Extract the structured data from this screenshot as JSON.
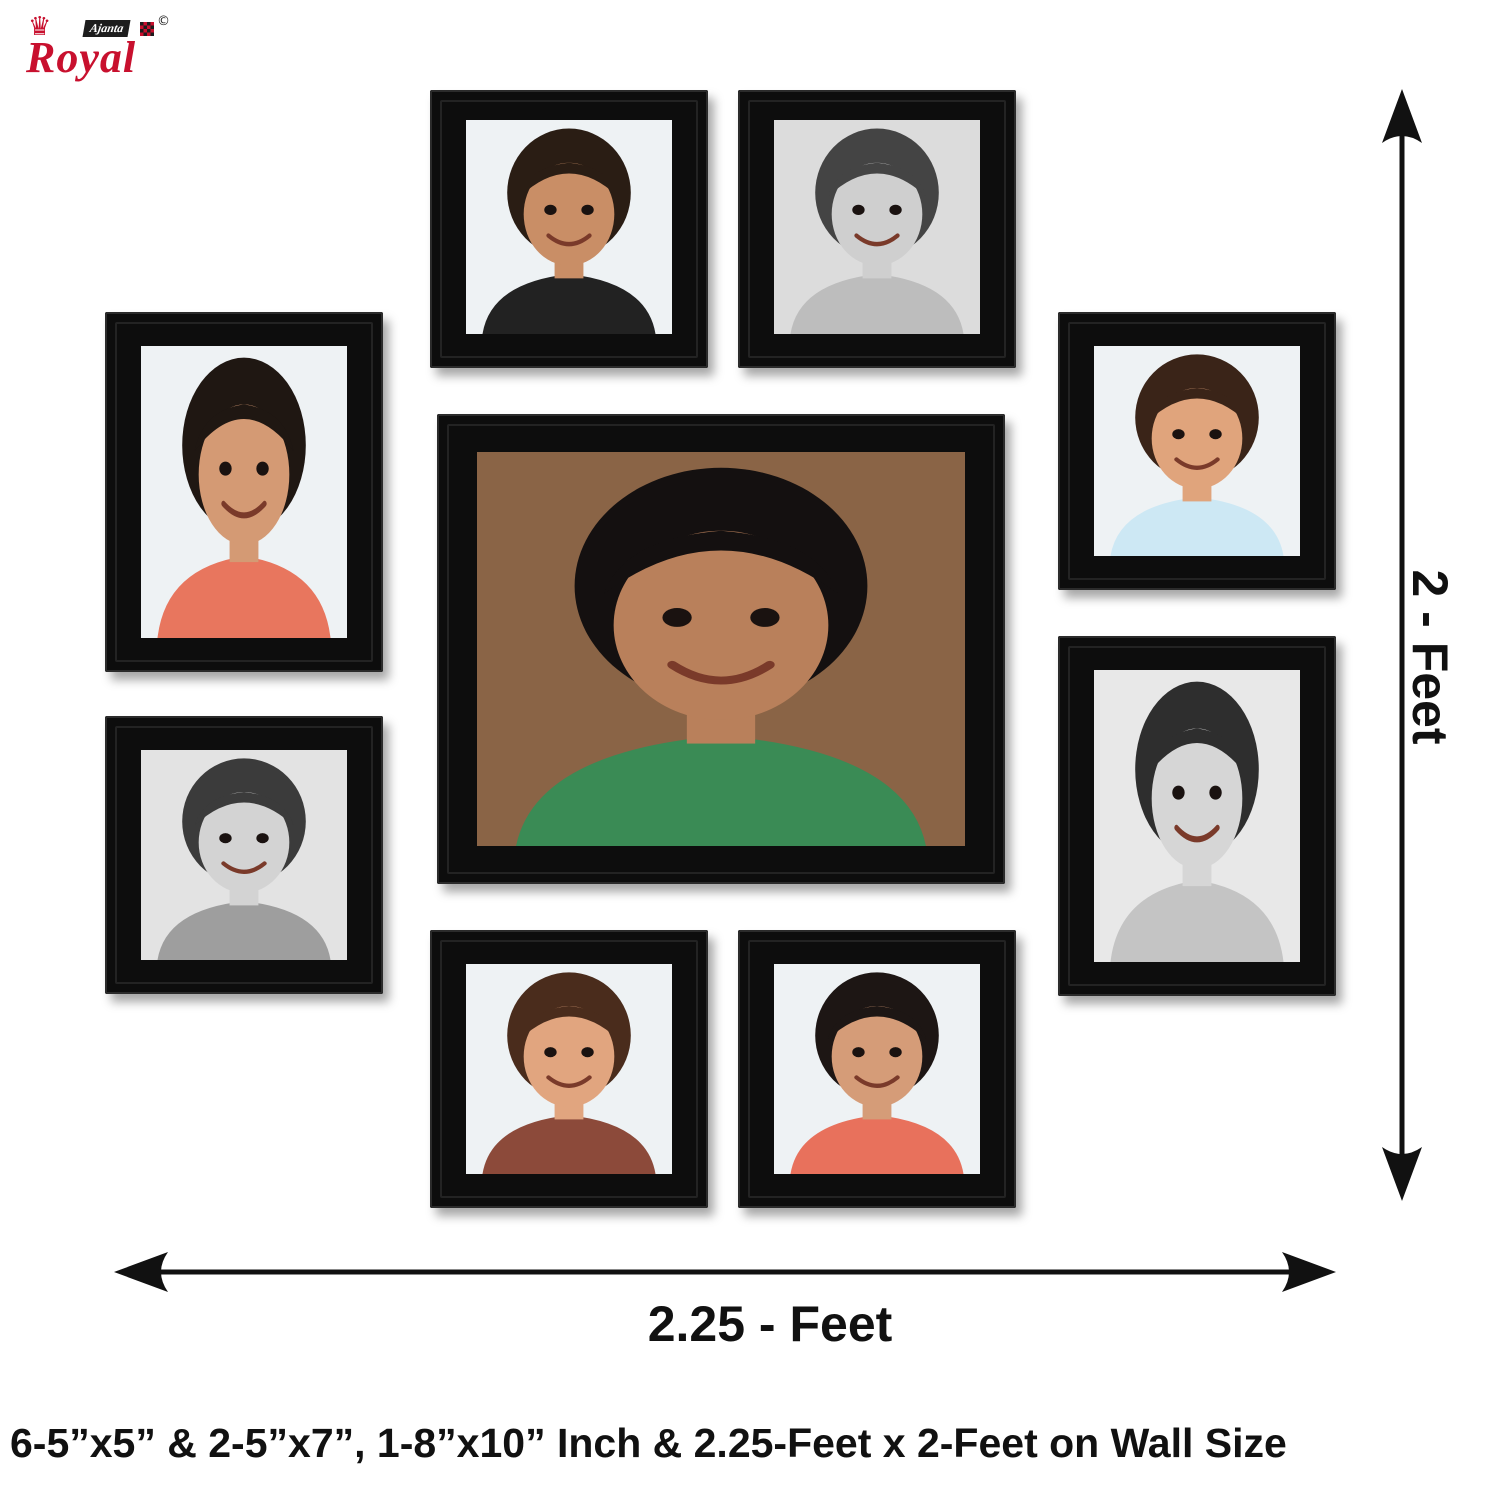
{
  "brand": {
    "crown": "♛",
    "ajanta": "Ajanta",
    "copyright": "©",
    "royal": "Royal",
    "color": "#c8102e"
  },
  "frames": [
    {
      "id": "boy-smiling-top",
      "tone": "color",
      "skin": "#c98e66",
      "hair": "#2a1d14",
      "shirt": "#222222",
      "bg": "#eef2f4"
    },
    {
      "id": "girl-hand-face-top",
      "tone": "bw",
      "skin": "#cfcfcf",
      "hair": "#444444",
      "shirt": "#bdbdbd",
      "bg": "#dcdcdc"
    },
    {
      "id": "girl-pink-left",
      "tone": "color",
      "skin": "#d49a74",
      "hair": "#1f1712",
      "shirt": "#e8765e",
      "bg": "#eef2f4"
    },
    {
      "id": "baby-right-top",
      "tone": "color",
      "skin": "#e0a47c",
      "hair": "#3a2418",
      "shirt": "#cde8f4",
      "bg": "#eef2f4"
    },
    {
      "id": "boy-center-large",
      "tone": "color",
      "skin": "#b9805b",
      "hair": "#141010",
      "shirt": "#3a8b55",
      "bg": "#8a6446"
    },
    {
      "id": "girl-bw-left",
      "tone": "bw",
      "skin": "#d3d3d3",
      "hair": "#3b3b3b",
      "shirt": "#9e9e9e",
      "bg": "#e3e3e3"
    },
    {
      "id": "girl-bw-right-laughing",
      "tone": "bw",
      "skin": "#d6d6d6",
      "hair": "#2e2e2e",
      "shirt": "#c4c4c4",
      "bg": "#e8e8e8"
    },
    {
      "id": "baby-bottom",
      "tone": "color",
      "skin": "#e1a57f",
      "hair": "#4a2c1c",
      "shirt": "#8c4a3a",
      "bg": "#eef2f4"
    },
    {
      "id": "girl-sunglasses-bottom",
      "tone": "color",
      "skin": "#d59c78",
      "hair": "#1d1614",
      "shirt": "#e8715c",
      "bg": "#eef2f4"
    }
  ],
  "dimensions": {
    "width_label": "2.25 - Feet",
    "height_label": "2 - Feet"
  },
  "caption": "6-5”x5”  &  2-5”x7”, 1-8”x10” Inch  &  2.25-Feet x 2-Feet on Wall Size"
}
